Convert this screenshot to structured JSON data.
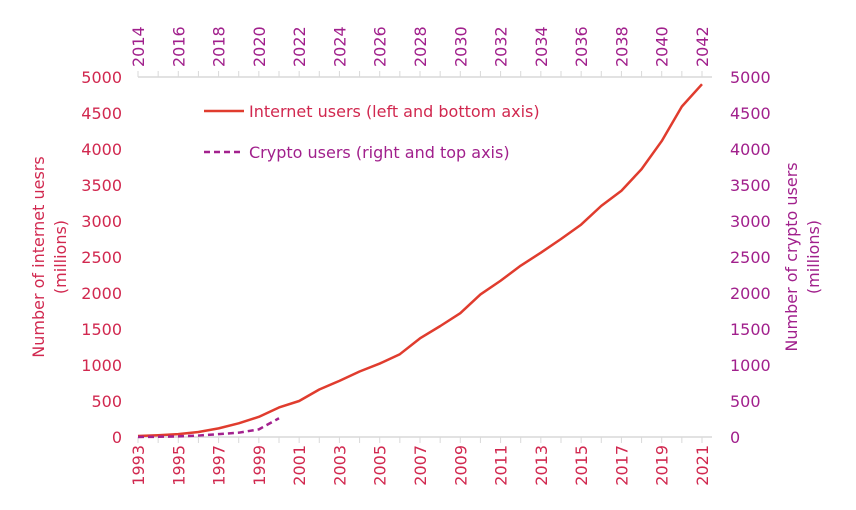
{
  "chart_data": {
    "type": "line",
    "left_axis": {
      "label": "Number of internet uesrs (millions)",
      "label_lines": [
        "Number of internet uesrs",
        "(millions)"
      ],
      "ylim": [
        0,
        5000
      ],
      "ticks": [
        0,
        500,
        1000,
        1500,
        2000,
        2500,
        3000,
        3500,
        4000,
        4500,
        5000
      ]
    },
    "right_axis": {
      "label": "Number of crypto users (millions)",
      "label_lines": [
        "Number of crypto users",
        "(millions)"
      ],
      "ylim": [
        0,
        5000
      ],
      "ticks": [
        0,
        500,
        1000,
        1500,
        2000,
        2500,
        3000,
        3500,
        4000,
        4500,
        5000
      ]
    },
    "bottom_axis": {
      "xlim": [
        1993,
        2021
      ],
      "ticks": [
        1993,
        1995,
        1997,
        1999,
        2001,
        2003,
        2005,
        2007,
        2009,
        2011,
        2013,
        2015,
        2017,
        2019,
        2021
      ]
    },
    "top_axis": {
      "xlim": [
        2014,
        2042
      ],
      "ticks": [
        2014,
        2016,
        2018,
        2020,
        2022,
        2024,
        2026,
        2028,
        2030,
        2032,
        2034,
        2036,
        2038,
        2040,
        2042
      ]
    },
    "legend_position": "top-left",
    "grid": false,
    "series": [
      {
        "name": "Internet users (left and bottom axis)",
        "color": "#e03c2e",
        "style": "solid",
        "axes": "left-bottom",
        "x": [
          1993,
          1994,
          1995,
          1996,
          1997,
          1998,
          1999,
          2000,
          2001,
          2002,
          2003,
          2004,
          2005,
          2006,
          2007,
          2008,
          2009,
          2010,
          2011,
          2012,
          2013,
          2014,
          2015,
          2016,
          2017,
          2018,
          2019,
          2020,
          2021
        ],
        "y": [
          14,
          25,
          40,
          70,
          120,
          190,
          280,
          410,
          500,
          660,
          780,
          910,
          1020,
          1150,
          1370,
          1540,
          1720,
          1980,
          2170,
          2380,
          2560,
          2750,
          2950,
          3210,
          3420,
          3720,
          4110,
          4590,
          4900
        ]
      },
      {
        "name": "Crypto users (right and top axis)",
        "color": "#a3218e",
        "style": "dashed",
        "axes": "right-top",
        "x": [
          2014,
          2015,
          2016,
          2017,
          2018,
          2019,
          2020,
          2021
        ],
        "y": [
          0,
          3,
          8,
          20,
          40,
          60,
          106,
          260
        ]
      }
    ]
  }
}
